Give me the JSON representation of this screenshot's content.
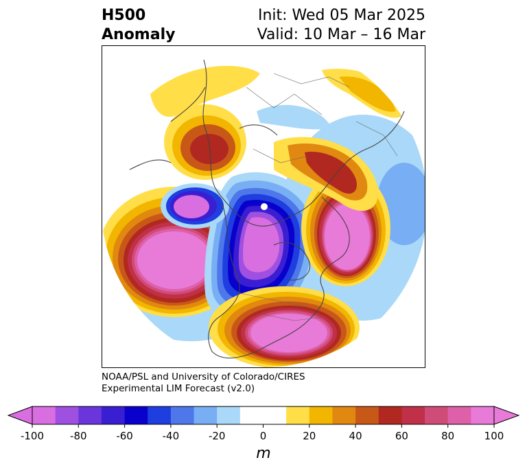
{
  "title": {
    "left_line1": "H500",
    "left_line2": "Anomaly",
    "right_line1": "Init: Wed 05 Mar 2025",
    "right_line2": "Valid: 10 Mar – 16 Mar"
  },
  "credits": {
    "line1": "NOAA/PSL and University of Colorado/CIRES",
    "line2": "Experimental LIM Forecast (v2.0)"
  },
  "colorbar": {
    "unit_label": "m",
    "ticks": [
      "-100",
      "-80",
      "-60",
      "-40",
      "-20",
      "0",
      "20",
      "40",
      "60",
      "80",
      "100"
    ],
    "colors": [
      "#d86ee0",
      "#a050e0",
      "#6a36dc",
      "#3a1ed2",
      "#0a00cc",
      "#1e3ee0",
      "#4e78ea",
      "#78aef4",
      "#aad8f8",
      "#ffffff",
      "#ffffff",
      "#ffde48",
      "#f2b600",
      "#e08810",
      "#c85818",
      "#b02820",
      "#c03048",
      "#d04c78",
      "#de60a8",
      "#e87ad8"
    ],
    "under_color": "#d86ee0",
    "over_color": "#e87ad8"
  },
  "map": {
    "projection": "north polar stereographic",
    "anomaly_centers": [
      {
        "region": "North Pacific",
        "sign": "positive",
        "approx_m": 100
      },
      {
        "region": "Canada / Hudson Bay",
        "sign": "negative",
        "approx_m": -100
      },
      {
        "region": "Eastern United States",
        "sign": "positive",
        "approx_m": 100
      },
      {
        "region": "Western Siberia / Urals",
        "sign": "positive",
        "approx_m": 100
      },
      {
        "region": "Europe / Western Russia",
        "sign": "positive",
        "approx_m": 70
      },
      {
        "region": "East Asia",
        "sign": "positive",
        "approx_m": 60
      }
    ]
  }
}
